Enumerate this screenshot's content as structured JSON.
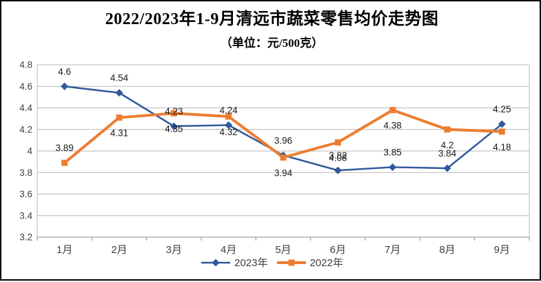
{
  "window": {
    "background": "#FFFFFF",
    "border_color": "#000000"
  },
  "title": "2022/2023年1-9月清远市蔬菜零售均价走势图",
  "subtitle": "（单位：元/500克）",
  "chart_data": {
    "type": "line",
    "categories": [
      "1月",
      "2月",
      "3月",
      "4月",
      "5月",
      "6月",
      "7月",
      "8月",
      "9月"
    ],
    "series": [
      {
        "name": "2023年",
        "color": "#31599B",
        "marker": "diamond",
        "values": [
          4.6,
          4.54,
          4.23,
          4.24,
          3.96,
          3.82,
          3.85,
          3.84,
          4.25
        ],
        "label_positions": [
          "above",
          "above",
          "above",
          "above",
          "above",
          "above",
          "above",
          "above",
          "above"
        ]
      },
      {
        "name": "2022年",
        "color": "#ED7D31",
        "marker": "square",
        "values": [
          3.89,
          4.31,
          4.35,
          4.32,
          3.94,
          4.08,
          4.38,
          4.2,
          4.18
        ],
        "label_positions": [
          "above",
          "below",
          "below",
          "below",
          "below",
          "below",
          "below",
          "below",
          "below"
        ]
      }
    ],
    "ylim": [
      3.2,
      4.8
    ],
    "ytick_labels": [
      "4.8",
      "4.6",
      "4.4",
      "4.2",
      "4",
      "3.8",
      "3.6",
      "3.4",
      "3.2"
    ],
    "grid": true,
    "legend_position": "bottom",
    "colors": {
      "gridline": "#B8B8B8",
      "axis_line": "#8C8C8C",
      "axis_text": "#404040",
      "data_label_text": "#1A1A1A"
    }
  }
}
